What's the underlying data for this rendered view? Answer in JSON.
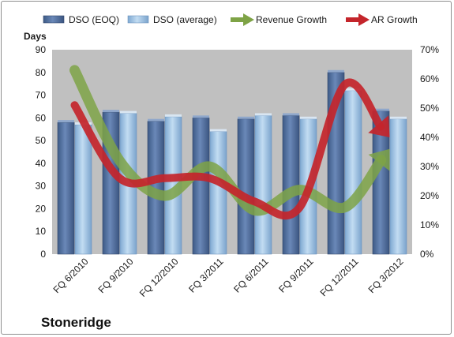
{
  "chart_data": {
    "type": "bar",
    "title": "",
    "categories": [
      "FQ 6/2010",
      "FQ 9/2010",
      "FQ 12/2010",
      "FQ 3/2011",
      "FQ 6/2011",
      "FQ 9/2011",
      "FQ 12/2011",
      "FQ 3/2012"
    ],
    "series": [
      {
        "name": "DSO (EOQ)",
        "kind": "bar",
        "axis": "left",
        "color": "#4f6fa0",
        "values": [
          58,
          62.5,
          58.5,
          60,
          59.5,
          61,
          80,
          63
        ]
      },
      {
        "name": "DSO (average)",
        "kind": "bar",
        "axis": "left",
        "color": "#9dc3e6",
        "values": [
          57,
          62,
          60.5,
          54,
          61,
          59.5,
          72,
          59.5
        ]
      },
      {
        "name": "Revenue Growth",
        "kind": "arrow-line",
        "axis": "right",
        "color": "#7ea346",
        "values": [
          0.63,
          0.32,
          0.2,
          0.3,
          0.15,
          0.22,
          0.16,
          0.36
        ]
      },
      {
        "name": "AR Growth",
        "kind": "arrow-line",
        "axis": "right",
        "color": "#c4252b",
        "values": [
          0.51,
          0.26,
          0.26,
          0.26,
          0.18,
          0.16,
          0.58,
          0.4
        ]
      }
    ],
    "ylabel": "Days",
    "ylim": [
      0,
      90
    ],
    "yticks": [
      "0",
      "10",
      "20",
      "30",
      "40",
      "50",
      "60",
      "70",
      "80",
      "90"
    ],
    "y2lim": [
      0,
      0.7
    ],
    "y2ticks": [
      "0%",
      "10%",
      "20%",
      "30%",
      "40%",
      "50%",
      "60%",
      "70%"
    ],
    "legend_position": "top",
    "grid": false,
    "plot_background": "#c0c0c0",
    "caption": "Stoneridge"
  }
}
